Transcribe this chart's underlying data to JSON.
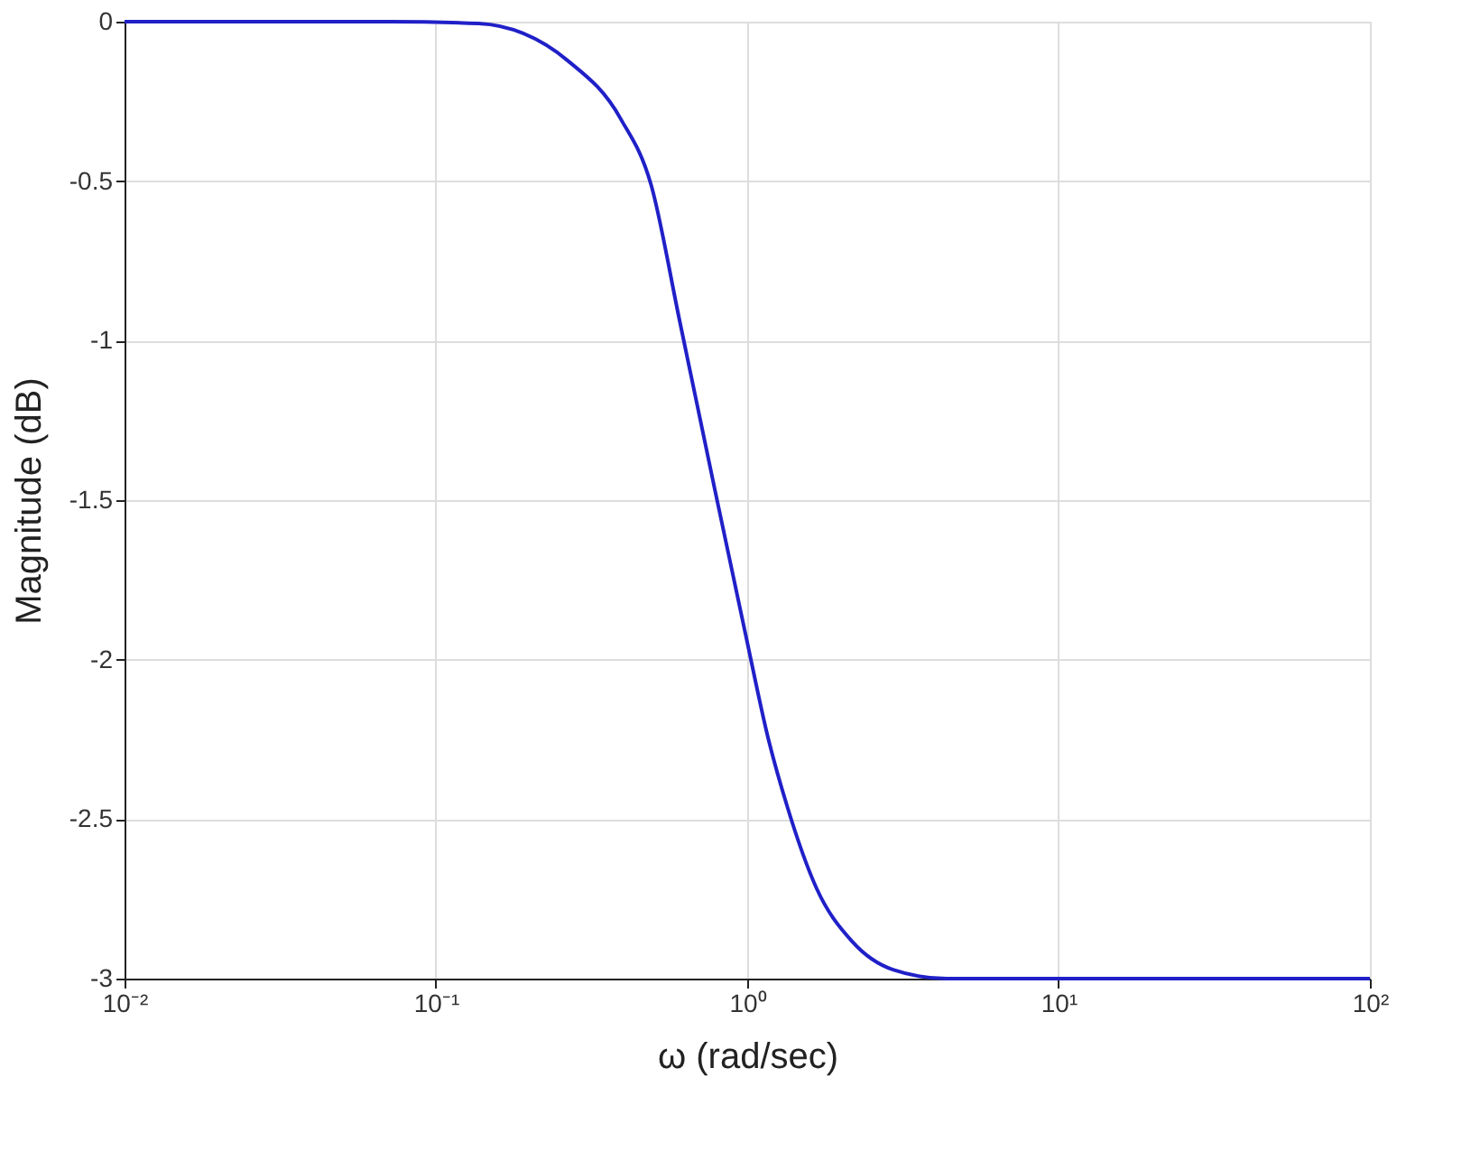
{
  "chart_data": {
    "type": "line",
    "xlabel": "ω (rad/sec)",
    "ylabel": "Magnitude (dB)",
    "x": [
      0.01,
      0.071,
      0.137,
      0.265,
      0.393,
      0.491,
      0.607,
      0.789,
      0.986,
      1.17,
      1.34,
      1.67,
      2.17,
      2.94,
      4.37,
      100
    ],
    "series": [
      {
        "color": "#2020c8",
        "values": [
          0,
          0,
          -0.006,
          -0.122,
          -0.306,
          -0.511,
          -0.939,
          -1.472,
          -1.917,
          -2.25,
          -2.456,
          -2.717,
          -2.883,
          -2.972,
          -3.0,
          -3.0
        ]
      }
    ],
    "log": "x",
    "xlim": [
      0.01,
      100
    ],
    "ylim": [
      -3,
      0
    ],
    "xticks": [
      {
        "value": 0.01,
        "label": "10⁻²"
      },
      {
        "value": 0.1,
        "label": "10⁻¹"
      },
      {
        "value": 1,
        "label": "10⁰"
      },
      {
        "value": 10,
        "label": "10¹"
      },
      {
        "value": 100,
        "label": "10²"
      }
    ],
    "yticks": [
      -3,
      -2.5,
      -2,
      -1.5,
      -1,
      -0.5,
      0
    ],
    "grid": true,
    "marker": "none",
    "line_style": "solid"
  }
}
